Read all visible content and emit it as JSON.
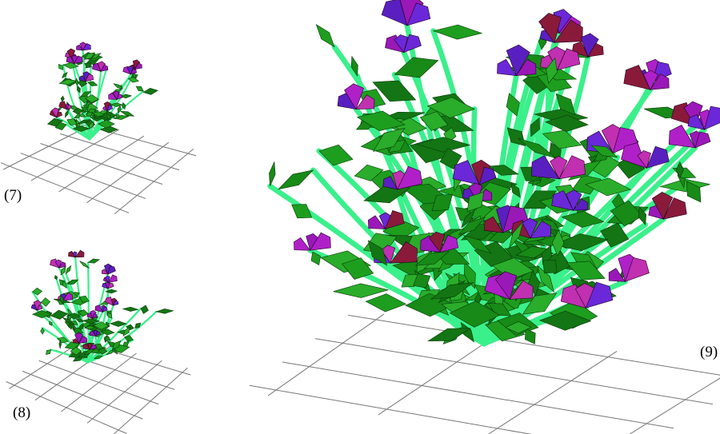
{
  "panels": [
    {
      "label": "(7)"
    },
    {
      "label": "(8)"
    },
    {
      "label": "(9)"
    }
  ]
}
